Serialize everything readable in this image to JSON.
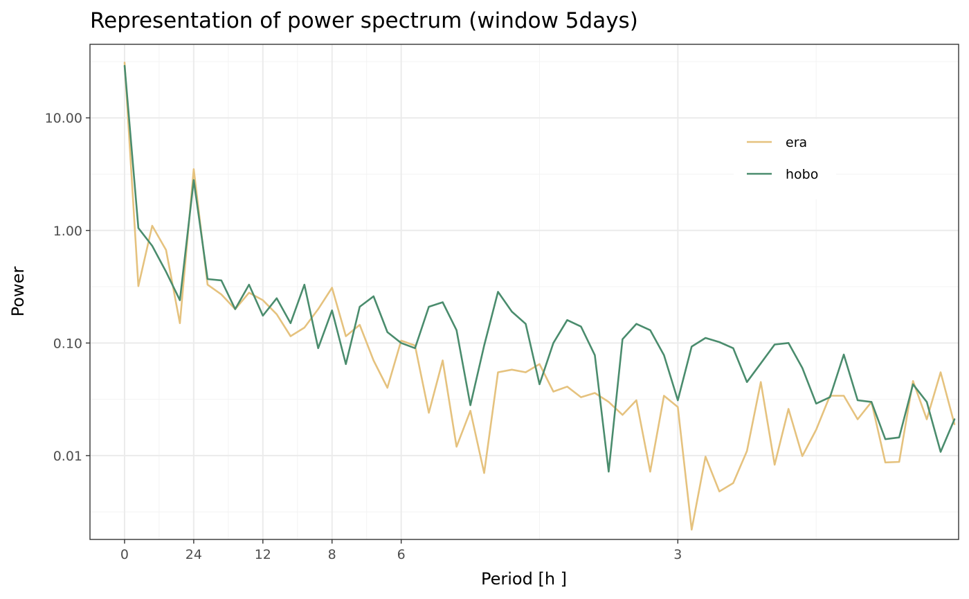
{
  "chart_data": {
    "type": "line",
    "title": "Representation of power spectrum (window 5days)",
    "xlabel": "Period [h ]",
    "ylabel": "Power",
    "y_scale": "log10",
    "ylim": [
      0.0018,
      45
    ],
    "x_index_range": [
      -2.5,
      60.3
    ],
    "x_ticks": [
      {
        "index": 0,
        "label": "0"
      },
      {
        "index": 5,
        "label": "24"
      },
      {
        "index": 10,
        "label": "12"
      },
      {
        "index": 15,
        "label": "8"
      },
      {
        "index": 20,
        "label": "6"
      },
      {
        "index": 40,
        "label": "3"
      }
    ],
    "y_ticks": [
      {
        "value": 0.01,
        "label": "0.01"
      },
      {
        "value": 0.1,
        "label": "0.10"
      },
      {
        "value": 1,
        "label": "1.00"
      },
      {
        "value": 10,
        "label": "10.00"
      }
    ],
    "grid": true,
    "legend_position": "top-right",
    "series": [
      {
        "name": "era",
        "color": "#E5C27E",
        "values": [
          31,
          0.32,
          1.1,
          0.67,
          0.15,
          3.5,
          0.33,
          0.27,
          0.2,
          0.28,
          0.24,
          0.18,
          0.115,
          0.137,
          0.2,
          0.31,
          0.115,
          0.145,
          0.07,
          0.04,
          0.105,
          0.095,
          0.024,
          0.07,
          0.012,
          0.025,
          0.007,
          0.055,
          0.058,
          0.055,
          0.065,
          0.037,
          0.041,
          0.033,
          0.036,
          0.03,
          0.023,
          0.031,
          0.0072,
          0.034,
          0.027,
          0.0022,
          0.0098,
          0.0048,
          0.0057,
          0.011,
          0.045,
          0.0083,
          0.026,
          0.0099,
          0.017,
          0.034,
          0.034,
          0.021,
          0.03,
          0.0087,
          0.0088,
          0.046,
          0.021,
          0.055,
          0.019
        ]
      },
      {
        "name": "hobo",
        "color": "#4A8C6D",
        "values": [
          29,
          1.05,
          0.73,
          0.43,
          0.24,
          2.8,
          0.37,
          0.36,
          0.2,
          0.33,
          0.175,
          0.25,
          0.15,
          0.33,
          0.09,
          0.195,
          0.065,
          0.21,
          0.26,
          0.125,
          0.1,
          0.09,
          0.21,
          0.23,
          0.13,
          0.028,
          0.095,
          0.285,
          0.19,
          0.148,
          0.043,
          0.1,
          0.16,
          0.14,
          0.078,
          0.0072,
          0.108,
          0.148,
          0.13,
          0.078,
          0.031,
          0.093,
          0.111,
          0.102,
          0.09,
          0.045,
          0.066,
          0.097,
          0.1,
          0.06,
          0.029,
          0.033,
          0.079,
          0.031,
          0.03,
          0.014,
          0.0145,
          0.043,
          0.03,
          0.0108,
          0.021
        ]
      }
    ]
  }
}
